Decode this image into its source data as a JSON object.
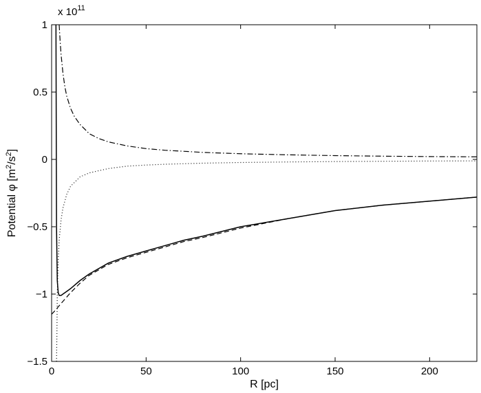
{
  "chart_data": {
    "type": "line",
    "title": "",
    "xlabel": "R [pc]",
    "ylabel_parts": [
      "Potential ",
      "φ",
      " [m",
      "2",
      "/s",
      "2",
      "]"
    ],
    "y_multiplier_parts": [
      "x 10",
      "11"
    ],
    "xlim": [
      0,
      225
    ],
    "ylim": [
      -1.5,
      1
    ],
    "x_ticks": [
      0,
      50,
      100,
      150,
      200
    ],
    "x_tick_labels": [
      "0",
      "50",
      "100",
      "150",
      "200"
    ],
    "y_ticks": [
      -1.5,
      -1,
      -0.5,
      0,
      0.5,
      1
    ],
    "y_tick_labels": [
      "−1.5",
      "−1",
      "−0.5",
      "0",
      "0.5",
      "1"
    ],
    "grid": false,
    "legend": "none",
    "series": [
      {
        "style": "solid",
        "x": [
          2.3,
          2.6,
          3,
          3.5,
          4,
          5,
          6,
          8,
          10,
          15,
          20,
          30,
          40,
          50,
          60,
          70,
          80,
          100,
          125,
          150,
          175,
          200,
          225
        ],
        "y": [
          1,
          -0.5,
          -0.9,
          -0.99,
          -1.01,
          -1.01,
          -1.0,
          -0.98,
          -0.96,
          -0.9,
          -0.85,
          -0.77,
          -0.72,
          -0.68,
          -0.64,
          -0.6,
          -0.57,
          -0.5,
          -0.44,
          -0.38,
          -0.34,
          -0.31,
          -0.28
        ]
      },
      {
        "style": "dashed",
        "x": [
          0,
          2,
          5,
          10,
          15,
          20,
          30,
          40,
          50,
          60,
          70,
          80,
          100,
          125,
          150,
          175,
          200,
          225
        ],
        "y": [
          -1.15,
          -1.12,
          -1.07,
          -0.99,
          -0.92,
          -0.86,
          -0.78,
          -0.73,
          -0.69,
          -0.65,
          -0.61,
          -0.58,
          -0.51,
          -0.44,
          -0.38,
          -0.34,
          -0.31,
          -0.28
        ]
      },
      {
        "style": "dotted",
        "x": [
          2.6,
          2.8,
          3,
          3.5,
          4,
          5,
          6,
          8,
          10,
          15,
          20,
          30,
          40,
          50,
          60,
          80,
          100,
          125,
          150,
          175,
          200,
          225
        ],
        "y": [
          -1.5,
          -1.3,
          -1.0,
          -0.75,
          -0.6,
          -0.45,
          -0.36,
          -0.26,
          -0.2,
          -0.13,
          -0.1,
          -0.068,
          -0.05,
          -0.042,
          -0.036,
          -0.028,
          -0.023,
          -0.019,
          -0.016,
          -0.014,
          -0.012,
          -0.011
        ]
      },
      {
        "style": "dashdot",
        "x": [
          4,
          4.5,
          5,
          6,
          7,
          8,
          10,
          12,
          15,
          20,
          25,
          30,
          40,
          50,
          60,
          80,
          100,
          125,
          150,
          175,
          200,
          225
        ],
        "y": [
          1,
          0.88,
          0.78,
          0.64,
          0.54,
          0.47,
          0.38,
          0.32,
          0.26,
          0.19,
          0.155,
          0.13,
          0.1,
          0.08,
          0.068,
          0.052,
          0.042,
          0.034,
          0.028,
          0.024,
          0.021,
          0.019
        ]
      }
    ]
  }
}
